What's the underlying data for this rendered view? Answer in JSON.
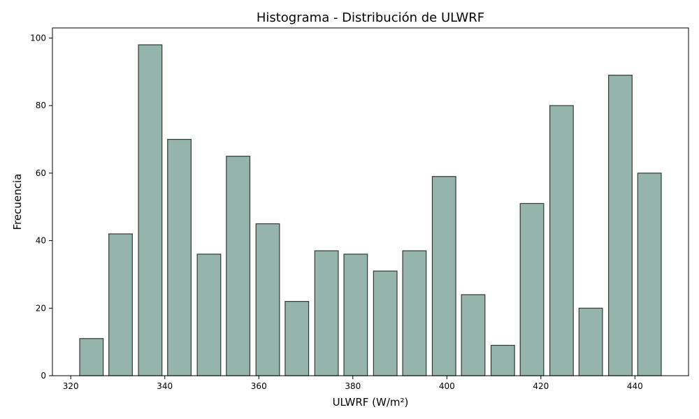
{
  "chart_data": {
    "type": "bar",
    "title": "Histograma - Distribución de ULWRF",
    "xlabel": "ULWRF (W/m²)",
    "ylabel": "Frecuencia",
    "bin_width": 6.25,
    "bins": [
      {
        "x": 324.4,
        "value": 11
      },
      {
        "x": 330.6,
        "value": 42
      },
      {
        "x": 336.9,
        "value": 98
      },
      {
        "x": 343.1,
        "value": 70
      },
      {
        "x": 349.4,
        "value": 36
      },
      {
        "x": 355.6,
        "value": 65
      },
      {
        "x": 361.9,
        "value": 45
      },
      {
        "x": 368.1,
        "value": 22
      },
      {
        "x": 374.4,
        "value": 37
      },
      {
        "x": 380.6,
        "value": 36
      },
      {
        "x": 386.9,
        "value": 31
      },
      {
        "x": 393.1,
        "value": 37
      },
      {
        "x": 399.4,
        "value": 59
      },
      {
        "x": 405.6,
        "value": 24
      },
      {
        "x": 411.9,
        "value": 9
      },
      {
        "x": 418.1,
        "value": 51
      },
      {
        "x": 424.4,
        "value": 80
      },
      {
        "x": 430.6,
        "value": 20
      },
      {
        "x": 436.9,
        "value": 89
      },
      {
        "x": 443.1,
        "value": 60
      }
    ],
    "xlim": [
      316.1,
      451.4
    ],
    "ylim": [
      0,
      103
    ],
    "xticks": [
      320,
      340,
      360,
      380,
      400,
      420,
      440
    ],
    "yticks": [
      0,
      20,
      40,
      60,
      80,
      100
    ],
    "grid": false,
    "colors": {
      "bar_fill": "#8fb0a6",
      "bar_edge": "#333833"
    }
  }
}
